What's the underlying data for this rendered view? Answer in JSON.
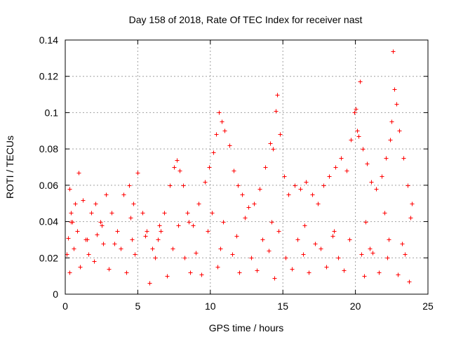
{
  "chart_data": {
    "type": "scatter",
    "title": "Day 158 of 2018, Rate Of TEC Index for receiver nast",
    "xlabel": "GPS time / hours",
    "ylabel": "ROTI / TECUs",
    "xlim": [
      0,
      25
    ],
    "ylim": [
      0,
      0.14
    ],
    "x_ticks": [
      0,
      5,
      10,
      15,
      20,
      25
    ],
    "x_tick_labels": [
      "0",
      "5",
      "10",
      "15",
      "20",
      "25"
    ],
    "y_ticks": [
      0,
      0.02,
      0.04,
      0.06,
      0.08,
      0.1,
      0.12,
      0.14
    ],
    "y_tick_labels": [
      "0",
      "0.02",
      "0.04",
      "0.06",
      "0.08",
      "0.1",
      "0.12",
      "0.14"
    ],
    "grid": true,
    "legend": "none",
    "marker": "plus",
    "marker_color": "#ff0000",
    "series": [
      {
        "name": "ROTI",
        "x": [
          0.1,
          0.2,
          0.3,
          0.4,
          0.5,
          0.7,
          0.9,
          1.2,
          1.5,
          1.8,
          2.1,
          2.4,
          2.8,
          3.2,
          3.6,
          4.0,
          4.4,
          4.7,
          5.0,
          5.3,
          5.6,
          6.0,
          6.4,
          6.8,
          7.2,
          7.5,
          7.7,
          7.9,
          8.1,
          8.4,
          8.8,
          9.2,
          9.6,
          9.9,
          10.2,
          10.4,
          10.6,
          10.8,
          11.0,
          11.3,
          11.6,
          11.9,
          12.2,
          12.6,
          13.0,
          13.4,
          13.8,
          14.1,
          14.3,
          14.5,
          14.6,
          14.8,
          15.1,
          15.4,
          15.8,
          16.2,
          16.6,
          17.0,
          17.4,
          17.8,
          18.2,
          18.6,
          19.0,
          19.4,
          19.7,
          19.9,
          20.0,
          20.1,
          20.2,
          20.3,
          20.5,
          20.8,
          21.1,
          21.4,
          21.8,
          22.1,
          22.4,
          22.5,
          22.6,
          22.7,
          22.8,
          23.0,
          23.3,
          23.6,
          23.9,
          0.3,
          1.0,
          2.0,
          3.0,
          4.2,
          5.8,
          7.0,
          8.6,
          9.4,
          10.5,
          12.0,
          13.2,
          14.4,
          15.6,
          16.8,
          18.0,
          19.2,
          20.6,
          21.6,
          22.9,
          23.7,
          0.6,
          1.6,
          2.6,
          3.8,
          4.8,
          6.2,
          7.4,
          8.2,
          9.0,
          10.7,
          11.5,
          12.8,
          14.0,
          15.2,
          16.4,
          17.6,
          18.8,
          20.4,
          21.2,
          22.2,
          23.4,
          0.8,
          1.4,
          2.2,
          3.4,
          4.6,
          5.5,
          6.6,
          7.8,
          9.8,
          10.9,
          11.8,
          13.6,
          14.7,
          16.0,
          17.2,
          18.4,
          19.6,
          21.0,
          22.3,
          23.2,
          0.4,
          2.5,
          4.5,
          6.5,
          8.5,
          10.1,
          12.4,
          14.2,
          16.5,
          18.5,
          20.7,
          22.0,
          23.8
        ],
        "y": [
          0.022,
          0.031,
          0.058,
          0.045,
          0.04,
          0.05,
          0.067,
          0.052,
          0.03,
          0.045,
          0.05,
          0.04,
          0.055,
          0.045,
          0.035,
          0.055,
          0.06,
          0.05,
          0.067,
          0.045,
          0.035,
          0.025,
          0.03,
          0.045,
          0.06,
          0.07,
          0.074,
          0.068,
          0.06,
          0.045,
          0.038,
          0.05,
          0.062,
          0.07,
          0.078,
          0.088,
          0.1,
          0.095,
          0.09,
          0.082,
          0.068,
          0.06,
          0.055,
          0.048,
          0.05,
          0.058,
          0.07,
          0.083,
          0.08,
          0.101,
          0.11,
          0.088,
          0.065,
          0.055,
          0.06,
          0.058,
          0.062,
          0.055,
          0.05,
          0.06,
          0.065,
          0.07,
          0.075,
          0.068,
          0.085,
          0.1,
          0.102,
          0.09,
          0.087,
          0.117,
          0.08,
          0.072,
          0.062,
          0.058,
          0.065,
          0.075,
          0.085,
          0.095,
          0.134,
          0.113,
          0.105,
          0.09,
          0.075,
          0.06,
          0.05,
          0.012,
          0.015,
          0.018,
          0.014,
          0.012,
          0.006,
          0.01,
          0.012,
          0.011,
          0.015,
          0.012,
          0.013,
          0.009,
          0.014,
          0.012,
          0.015,
          0.013,
          0.01,
          0.012,
          0.011,
          0.007,
          0.025,
          0.022,
          0.028,
          0.025,
          0.022,
          0.02,
          0.025,
          0.02,
          0.023,
          0.025,
          0.022,
          0.02,
          0.024,
          0.02,
          0.022,
          0.025,
          0.02,
          0.022,
          0.023,
          0.02,
          0.022,
          0.035,
          0.03,
          0.033,
          0.028,
          0.03,
          0.032,
          0.035,
          0.038,
          0.035,
          0.04,
          0.032,
          0.03,
          0.035,
          0.03,
          0.028,
          0.032,
          0.03,
          0.025,
          0.03,
          0.028,
          0.04,
          0.038,
          0.042,
          0.038,
          0.04,
          0.045,
          0.042,
          0.04,
          0.038,
          0.035,
          0.04,
          0.045,
          0.042
        ]
      }
    ]
  }
}
